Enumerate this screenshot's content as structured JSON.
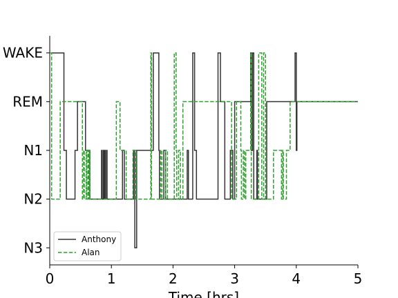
{
  "chart_data": {
    "type": "line",
    "title": "",
    "xlabel": "Time [hrs]",
    "ylabel": "",
    "xlim": [
      0,
      5
    ],
    "ylim": [
      -0.35,
      4.35
    ],
    "x_ticks": [
      0,
      1,
      2,
      3,
      4,
      5
    ],
    "x_tick_labels": [
      "0",
      "1",
      "2",
      "3",
      "4",
      "5"
    ],
    "y_ticks": [
      0,
      1,
      2,
      3,
      4
    ],
    "y_tick_labels": [
      "N3",
      "N2",
      "N1",
      "REM",
      "WAKE"
    ],
    "grid": false,
    "legend": {
      "position": "lower-left"
    },
    "series": [
      {
        "name": "Anthony",
        "color": "#333333",
        "dash": "solid",
        "steps": [
          [
            0.0,
            4
          ],
          [
            0.23,
            2
          ],
          [
            0.27,
            1
          ],
          [
            0.41,
            2
          ],
          [
            0.45,
            3
          ],
          [
            0.58,
            2
          ],
          [
            0.65,
            1
          ],
          [
            0.84,
            2
          ],
          [
            0.85,
            1
          ],
          [
            0.87,
            2
          ],
          [
            0.88,
            1
          ],
          [
            0.89,
            2
          ],
          [
            0.9,
            1
          ],
          [
            0.92,
            2
          ],
          [
            0.93,
            1
          ],
          [
            1.18,
            2
          ],
          [
            1.21,
            1
          ],
          [
            1.36,
            2
          ],
          [
            1.38,
            0
          ],
          [
            1.41,
            2
          ],
          [
            1.68,
            4
          ],
          [
            1.77,
            2
          ],
          [
            1.78,
            1
          ],
          [
            1.85,
            2
          ],
          [
            1.88,
            1
          ],
          [
            2.23,
            2
          ],
          [
            2.25,
            1
          ],
          [
            2.32,
            4
          ],
          [
            2.35,
            2
          ],
          [
            2.38,
            1
          ],
          [
            2.73,
            4
          ],
          [
            2.77,
            3
          ],
          [
            2.84,
            1
          ],
          [
            2.93,
            2
          ],
          [
            2.97,
            1
          ],
          [
            3.0,
            3
          ],
          [
            3.26,
            4
          ],
          [
            3.27,
            2
          ],
          [
            3.29,
            4
          ],
          [
            3.31,
            1
          ],
          [
            3.36,
            2
          ],
          [
            3.37,
            1
          ],
          [
            3.52,
            3
          ],
          [
            3.98,
            4
          ],
          [
            4.0,
            2
          ],
          [
            4.01,
            3
          ],
          [
            5.0,
            3
          ]
        ]
      },
      {
        "name": "Alan",
        "color": "#2ca02c",
        "dash": "dashed",
        "steps": [
          [
            0.0,
            4
          ],
          [
            0.03,
            1
          ],
          [
            0.17,
            3
          ],
          [
            0.53,
            1
          ],
          [
            0.55,
            2
          ],
          [
            0.56,
            1
          ],
          [
            0.59,
            2
          ],
          [
            0.6,
            1
          ],
          [
            0.62,
            2
          ],
          [
            0.63,
            1
          ],
          [
            0.64,
            2
          ],
          [
            0.65,
            1
          ],
          [
            1.08,
            3
          ],
          [
            1.14,
            2
          ],
          [
            1.19,
            2
          ],
          [
            1.24,
            1
          ],
          [
            1.35,
            2
          ],
          [
            1.38,
            2
          ],
          [
            1.4,
            1
          ],
          [
            1.64,
            4
          ],
          [
            1.65,
            1
          ],
          [
            1.8,
            2
          ],
          [
            1.82,
            1
          ],
          [
            1.88,
            2
          ],
          [
            1.91,
            1
          ],
          [
            2.02,
            4
          ],
          [
            2.05,
            2
          ],
          [
            2.06,
            1
          ],
          [
            2.09,
            2
          ],
          [
            2.12,
            1
          ],
          [
            2.16,
            3
          ],
          [
            2.95,
            1
          ],
          [
            3.03,
            3
          ],
          [
            3.1,
            2
          ],
          [
            3.11,
            1
          ],
          [
            3.14,
            2
          ],
          [
            3.16,
            1
          ],
          [
            3.18,
            2
          ],
          [
            3.26,
            4
          ],
          [
            3.27,
            1
          ],
          [
            3.39,
            4
          ],
          [
            3.44,
            1
          ],
          [
            3.47,
            4
          ],
          [
            3.5,
            1
          ],
          [
            3.58,
            1
          ],
          [
            3.63,
            2
          ],
          [
            3.76,
            1
          ],
          [
            3.78,
            2
          ],
          [
            3.79,
            1
          ],
          [
            3.84,
            2
          ],
          [
            3.9,
            3
          ],
          [
            5.0,
            3
          ]
        ]
      }
    ]
  }
}
